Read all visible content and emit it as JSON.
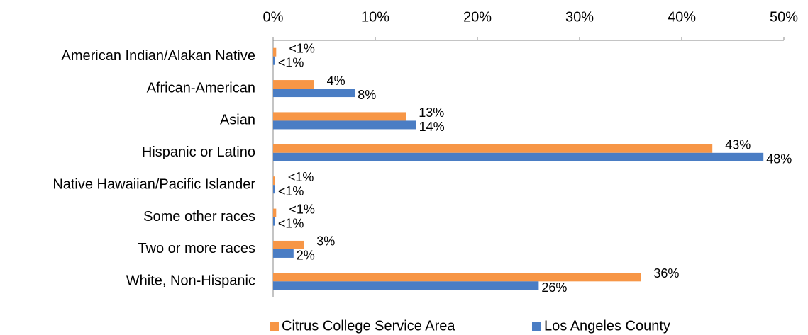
{
  "chart_data": {
    "type": "hbar",
    "categories": [
      "American Indian/Alakan Native",
      "African-American",
      "Asian",
      "Hispanic or Latino",
      "Native Hawaiian/Pacific Islander",
      "Some other races",
      "Two or more races",
      "White, Non-Hispanic"
    ],
    "series": [
      {
        "name": "Citrus College Service Area",
        "color": "#f79646",
        "values": [
          0.3,
          4,
          13,
          43,
          0.2,
          0.3,
          3,
          36
        ],
        "value_labels": [
          "<1%",
          "4%",
          "13%",
          "43%",
          "<1%",
          "<1%",
          "3%",
          "36%"
        ]
      },
      {
        "name": "Los Angeles County",
        "color": "#4a7dc4",
        "values": [
          0.2,
          8,
          14,
          48,
          0.2,
          0.2,
          2,
          26
        ],
        "value_labels": [
          "<1%",
          "8%",
          "14%",
          "48%",
          "<1%",
          "<1%",
          "2%",
          "26%"
        ]
      }
    ],
    "xlim": [
      0,
      50
    ],
    "xticks": [
      {
        "value": 0,
        "label": "0%"
      },
      {
        "value": 10,
        "label": "10%"
      },
      {
        "value": 20,
        "label": "20%"
      },
      {
        "value": 30,
        "label": "30%"
      },
      {
        "value": 40,
        "label": "40%"
      },
      {
        "value": 50,
        "label": "50%"
      }
    ],
    "legend": "bottom"
  }
}
